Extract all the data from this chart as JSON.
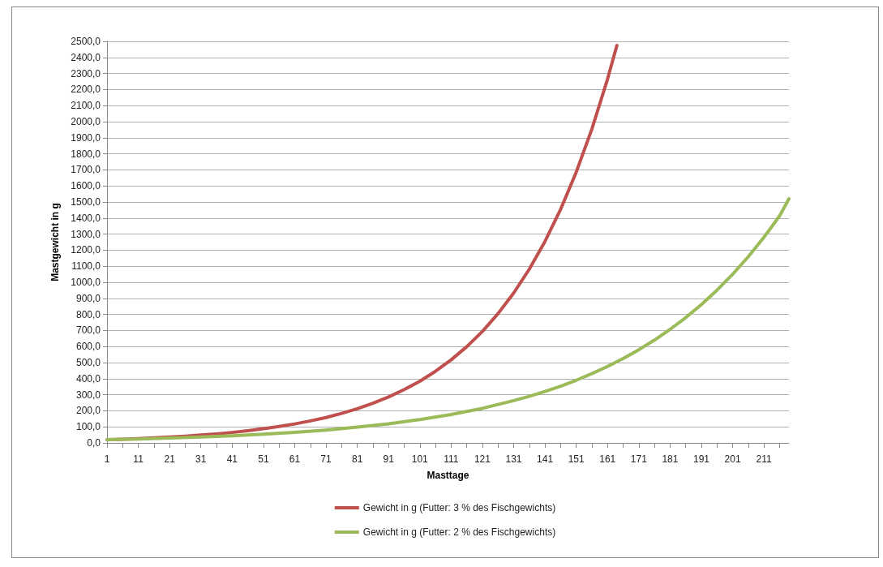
{
  "chart_data": {
    "type": "line",
    "xlabel": "Masttage",
    "ylabel": "Mastgewicht in g",
    "xlim": [
      1,
      219
    ],
    "xticks": [
      1,
      {
        "value": 6,
        "label": null
      },
      11,
      {
        "value": 16,
        "label": null
      },
      21,
      {
        "value": 26,
        "label": null
      },
      31,
      {
        "value": 36,
        "label": null
      },
      41,
      {
        "value": 46,
        "label": null
      },
      51,
      {
        "value": 56,
        "label": null
      },
      61,
      {
        "value": 66,
        "label": null
      },
      71,
      {
        "value": 76,
        "label": null
      },
      81,
      {
        "value": 86,
        "label": null
      },
      91,
      {
        "value": 96,
        "label": null
      },
      101,
      {
        "value": 106,
        "label": null
      },
      111,
      {
        "value": 116,
        "label": null
      },
      121,
      {
        "value": 126,
        "label": null
      },
      131,
      {
        "value": 136,
        "label": null
      },
      141,
      {
        "value": 146,
        "label": null
      },
      151,
      {
        "value": 156,
        "label": null
      },
      161,
      {
        "value": 166,
        "label": null
      },
      171,
      {
        "value": 176,
        "label": null
      },
      181,
      {
        "value": 186,
        "label": null
      },
      191,
      {
        "value": 196,
        "label": null
      },
      201,
      {
        "value": 206,
        "label": null
      },
      211,
      {
        "value": 216,
        "label": null
      }
    ],
    "ylim": [
      0,
      2500
    ],
    "yticks": [
      {
        "value": 0,
        "label": "0,0"
      },
      {
        "value": 100,
        "label": "100,0"
      },
      {
        "value": 200,
        "label": "200,0"
      },
      {
        "value": 300,
        "label": "300,0"
      },
      {
        "value": 400,
        "label": "400,0"
      },
      {
        "value": 500,
        "label": "500,0"
      },
      {
        "value": 600,
        "label": "600,0"
      },
      {
        "value": 700,
        "label": "700,0"
      },
      {
        "value": 800,
        "label": "800,0"
      },
      {
        "value": 900,
        "label": "900,0"
      },
      {
        "value": 1000,
        "label": "1000,0"
      },
      {
        "value": 1100,
        "label": "1100,0"
      },
      {
        "value": 1200,
        "label": "1200,0"
      },
      {
        "value": 1300,
        "label": "1300,0"
      },
      {
        "value": 1400,
        "label": "1400,0"
      },
      {
        "value": 1500,
        "label": "1500,0"
      },
      {
        "value": 1600,
        "label": "1600,0"
      },
      {
        "value": 1700,
        "label": "1700,0"
      },
      {
        "value": 1800,
        "label": "1800,0"
      },
      {
        "value": 1900,
        "label": "1900,0"
      },
      {
        "value": 2000,
        "label": "2000,0"
      },
      {
        "value": 2100,
        "label": "2100,0"
      },
      {
        "value": 2200,
        "label": "2200,0"
      },
      {
        "value": 2300,
        "label": "2300,0"
      },
      {
        "value": 2400,
        "label": "2400,0"
      },
      {
        "value": 2500,
        "label": "2500,0"
      }
    ],
    "grid": "y",
    "legend": "bottom",
    "marker": "none",
    "line_style": "solid",
    "series": [
      {
        "name": "Gewicht in g (Futter: 3 % des Fischgewichts)",
        "color": "#c0504d",
        "x": [
          1,
          6,
          11,
          16,
          21,
          26,
          31,
          36,
          41,
          46,
          51,
          56,
          61,
          66,
          71,
          76,
          81,
          86,
          91,
          96,
          101,
          106,
          111,
          116,
          121,
          126,
          131,
          136,
          141,
          146,
          151,
          156,
          161,
          164
        ],
        "values": [
          20,
          23,
          27,
          31,
          36,
          42,
          49,
          56,
          65,
          76,
          88,
          102,
          118,
          137,
          158,
          184,
          213,
          247,
          286,
          332,
          384,
          446,
          517,
          599,
          694,
          805,
          933,
          1082,
          1254,
          1454,
          1686,
          1954,
          2265,
          2475
        ]
      },
      {
        "name": "Gewicht in g (Futter: 2 % des Fischgewichts)",
        "color": "#9bbb59",
        "x": [
          1,
          11,
          21,
          31,
          41,
          51,
          61,
          71,
          81,
          91,
          101,
          111,
          121,
          131,
          136,
          141,
          146,
          151,
          156,
          161,
          166,
          171,
          176,
          181,
          186,
          191,
          196,
          201,
          206,
          211,
          216,
          219
        ],
        "values": [
          20,
          24,
          30,
          36,
          44,
          54,
          66,
          80,
          98,
          119,
          145,
          177,
          215,
          263,
          290,
          320,
          353,
          390,
          431,
          476,
          525,
          580,
          640,
          707,
          780,
          861,
          951,
          1050,
          1159,
          1280,
          1413,
          1520
        ]
      }
    ]
  }
}
